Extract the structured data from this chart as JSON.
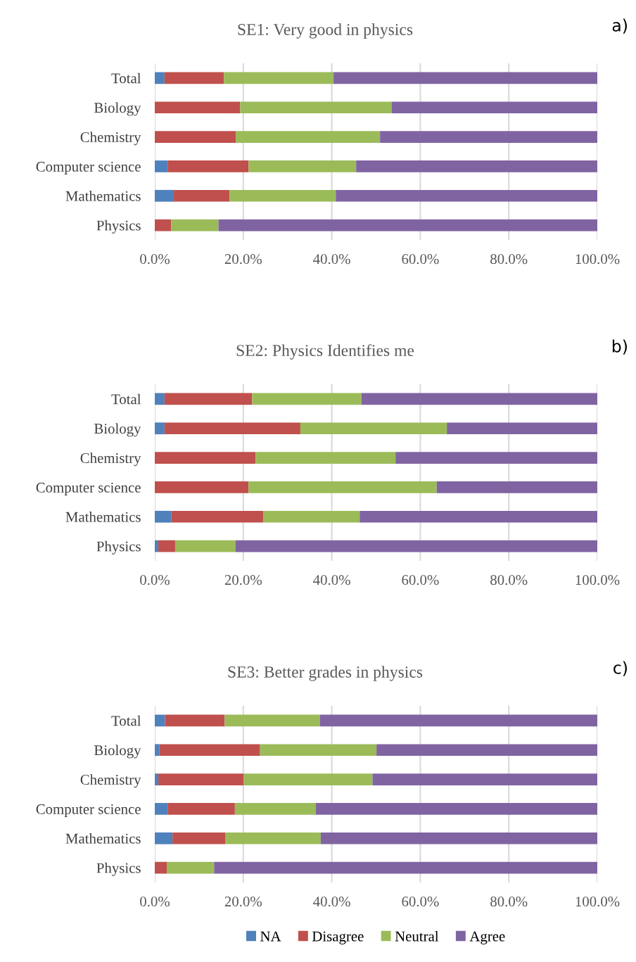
{
  "chart_data": [
    {
      "type": "bar",
      "orientation": "horizontal",
      "stacked": true,
      "title": "SE1: Very good in physics",
      "annotations": [
        "a)"
      ],
      "categories": [
        "Total",
        "Biology",
        "Chemistry",
        "Computer science",
        "Mathematics",
        "Physics"
      ],
      "series": [
        {
          "color": "#4f81bd",
          "values": [
            2.2,
            0,
            0,
            2.9,
            4.3,
            0
          ]
        },
        {
          "color": "#c0504d",
          "values": [
            13.4,
            19.3,
            18.3,
            18.3,
            12.6,
            3.7
          ]
        },
        {
          "color": "#9bbb59",
          "values": [
            24.8,
            34.2,
            32.6,
            24.3,
            24.0,
            10.7
          ]
        },
        {
          "color": "#8064a2",
          "values": [
            59.6,
            46.5,
            49.1,
            54.5,
            59.1,
            85.6
          ]
        }
      ],
      "xlim": [
        0,
        100
      ],
      "xticks": [
        {
          "value": 0,
          "label": "0.0%"
        },
        {
          "value": 20,
          "label": "20.0%"
        },
        {
          "value": 40,
          "label": "40.0%"
        },
        {
          "value": 60,
          "label": "60.0%"
        },
        {
          "value": 80,
          "label": "80.0%"
        },
        {
          "value": 100,
          "label": "100.0%"
        }
      ],
      "grid": "x"
    },
    {
      "type": "bar",
      "orientation": "horizontal",
      "stacked": true,
      "title": "SE2: Physics Identifies me",
      "annotations": [
        "b)"
      ],
      "categories": [
        "Total",
        "Biology",
        "Chemistry",
        "Computer science",
        "Mathematics",
        "Physics"
      ],
      "series": [
        {
          "color": "#4f81bd",
          "values": [
            2.2,
            2.2,
            0,
            0,
            3.7,
            0.8
          ]
        },
        {
          "color": "#c0504d",
          "values": [
            19.8,
            30.7,
            22.8,
            21.2,
            20.8,
            3.8
          ]
        },
        {
          "color": "#9bbb59",
          "values": [
            24.7,
            33.1,
            31.6,
            42.5,
            21.8,
            13.6
          ]
        },
        {
          "color": "#8064a2",
          "values": [
            53.3,
            34.0,
            45.6,
            36.3,
            53.7,
            81.8
          ]
        }
      ],
      "xlim": [
        0,
        100
      ],
      "xticks": [
        {
          "value": 0,
          "label": "0.0%"
        },
        {
          "value": 20,
          "label": "20.0%"
        },
        {
          "value": 40,
          "label": "40.0%"
        },
        {
          "value": 60,
          "label": "60.0%"
        },
        {
          "value": 80,
          "label": "80.0%"
        },
        {
          "value": 100,
          "label": "100.0%"
        }
      ],
      "grid": "x"
    },
    {
      "type": "bar",
      "orientation": "horizontal",
      "stacked": true,
      "title": "SE3: Better grades in physics",
      "annotations": [
        "c)"
      ],
      "categories": [
        "Total",
        "Biology",
        "Chemistry",
        "Computer science",
        "Mathematics",
        "Physics"
      ],
      "series": [
        {
          "name": "NA",
          "color": "#4f81bd",
          "values": [
            2.3,
            1.0,
            0.8,
            2.9,
            4.0,
            0
          ]
        },
        {
          "name": "Disagree",
          "color": "#c0504d",
          "values": [
            13.5,
            22.8,
            19.3,
            15.2,
            11.9,
            2.7
          ]
        },
        {
          "name": "Neutral",
          "color": "#9bbb59",
          "values": [
            21.5,
            26.3,
            29.1,
            18.3,
            21.6,
            10.7
          ]
        },
        {
          "name": "Agree",
          "color": "#8064a2",
          "values": [
            62.7,
            49.9,
            50.8,
            63.6,
            62.5,
            86.6
          ]
        }
      ],
      "xlim": [
        0,
        100
      ],
      "xticks": [
        {
          "value": 0,
          "label": "0.0%"
        },
        {
          "value": 20,
          "label": "20.0%"
        },
        {
          "value": 40,
          "label": "40.0%"
        },
        {
          "value": 60,
          "label": "60.0%"
        },
        {
          "value": 80,
          "label": "80.0%"
        },
        {
          "value": 100,
          "label": "100.0%"
        }
      ],
      "grid": "x",
      "legend": "bottom"
    }
  ]
}
